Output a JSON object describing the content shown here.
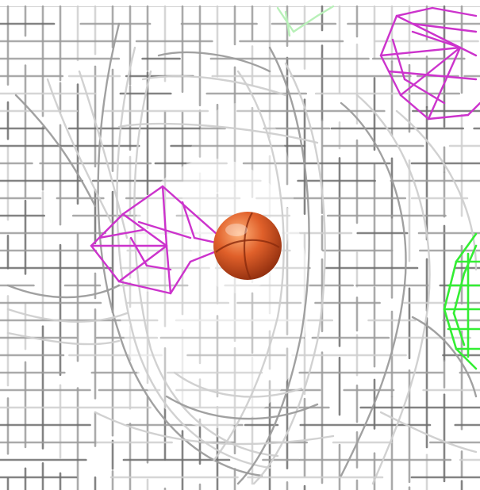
{
  "scene": {
    "background": "#ffffff",
    "colors": {
      "grey_mesh_dark": "#6e6e6e",
      "grey_mesh_mid": "#9c9c9c",
      "grey_mesh_light": "#cfcfcf",
      "magenta_mesh": "#cc33cc",
      "green_mesh": "#33ee33",
      "green_mesh_pale": "#b8f0b8",
      "sphere_base": "#e0602a",
      "sphere_highlight": "#ffb27a",
      "sphere_shadow": "#8a2a0c"
    },
    "objects": [
      {
        "name": "grey-density-mesh",
        "color": "grey"
      },
      {
        "name": "magenta-density-mesh",
        "color": "magenta"
      },
      {
        "name": "green-density-mesh",
        "color": "green"
      },
      {
        "name": "ion-sphere",
        "color": "orange"
      }
    ]
  }
}
